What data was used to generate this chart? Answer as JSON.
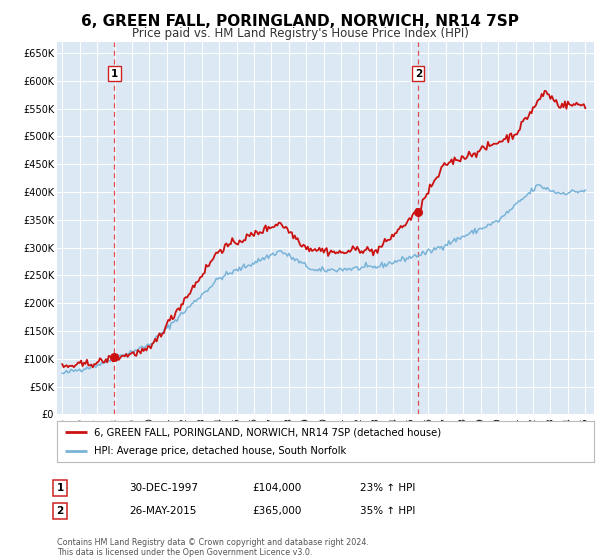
{
  "title": "6, GREEN FALL, PORINGLAND, NORWICH, NR14 7SP",
  "subtitle": "Price paid vs. HM Land Registry's House Price Index (HPI)",
  "title_fontsize": 11,
  "subtitle_fontsize": 8.5,
  "background_color": "#ffffff",
  "plot_bg_color": "#dce9f5",
  "grid_color": "#ffffff",
  "ylim": [
    0,
    670000
  ],
  "xlim_start": 1994.7,
  "xlim_end": 2025.5,
  "yticks": [
    0,
    50000,
    100000,
    150000,
    200000,
    250000,
    300000,
    350000,
    400000,
    450000,
    500000,
    550000,
    600000,
    650000
  ],
  "ytick_labels": [
    "£0",
    "£50K",
    "£100K",
    "£150K",
    "£200K",
    "£250K",
    "£300K",
    "£350K",
    "£400K",
    "£450K",
    "£500K",
    "£550K",
    "£600K",
    "£650K"
  ],
  "xticks": [
    1995,
    1996,
    1997,
    1998,
    1999,
    2000,
    2001,
    2002,
    2003,
    2004,
    2005,
    2006,
    2007,
    2008,
    2009,
    2010,
    2011,
    2012,
    2013,
    2014,
    2015,
    2016,
    2017,
    2018,
    2019,
    2020,
    2021,
    2022,
    2023,
    2024,
    2025
  ],
  "sale1_x": 1997.99,
  "sale1_y": 104000,
  "sale1_label": "1",
  "sale1_date": "30-DEC-1997",
  "sale1_price": "£104,000",
  "sale1_hpi": "23% ↑ HPI",
  "sale2_x": 2015.42,
  "sale2_y": 365000,
  "sale2_label": "2",
  "sale2_date": "26-MAY-2015",
  "sale2_price": "£365,000",
  "sale2_hpi": "35% ↑ HPI",
  "hpi_color": "#7ab3d8",
  "price_color": "#cc1111",
  "marker_color": "#cc1111",
  "vline_color": "#dd3333",
  "legend_label_price": "6, GREEN FALL, PORINGLAND, NORWICH, NR14 7SP (detached house)",
  "legend_label_hpi": "HPI: Average price, detached house, South Norfolk",
  "footer1": "Contains HM Land Registry data © Crown copyright and database right 2024.",
  "footer2": "This data is licensed under the Open Government Licence v3.0."
}
